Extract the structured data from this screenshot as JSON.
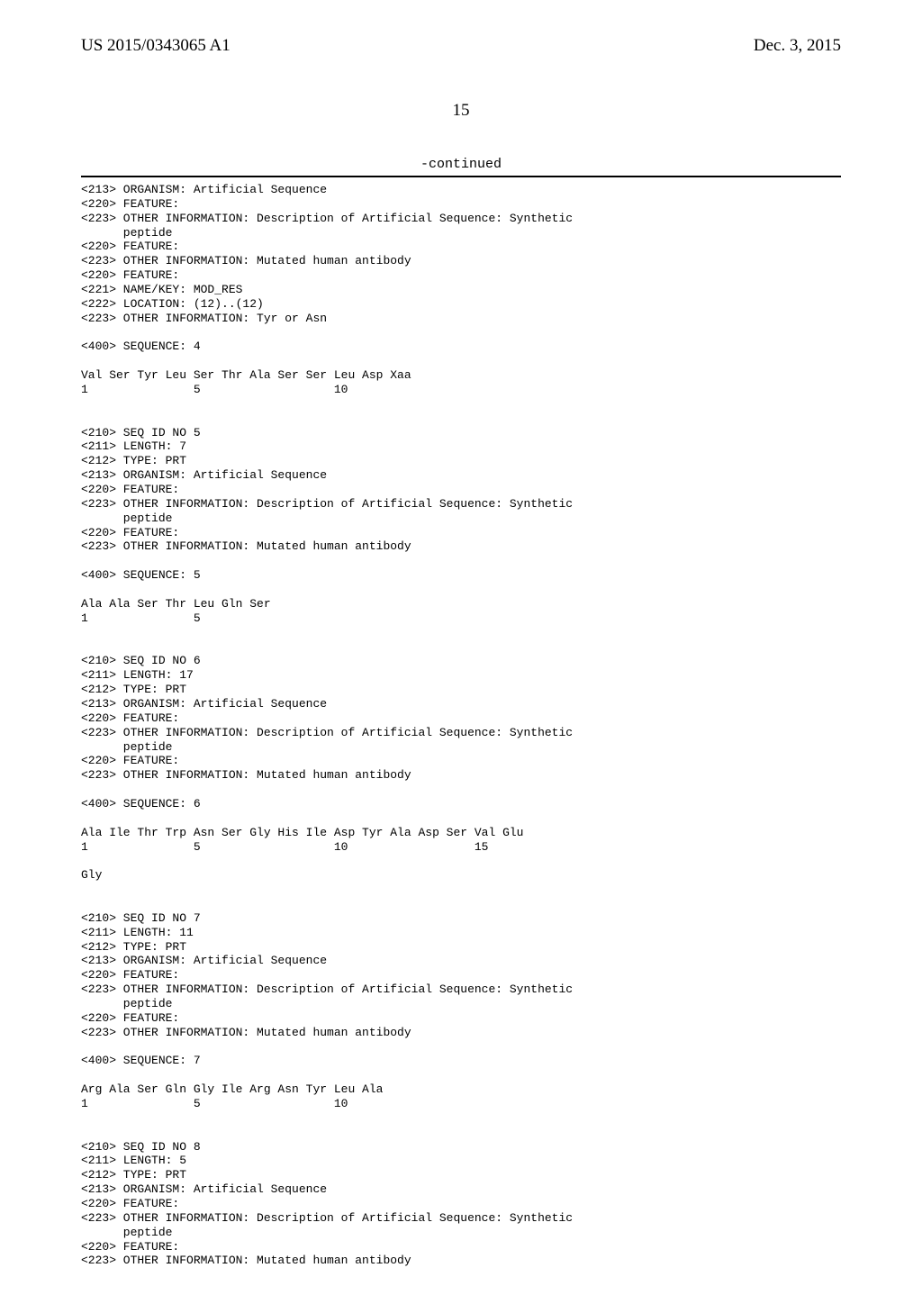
{
  "header": {
    "pub_id": "US 2015/0343065 A1",
    "pub_date": "Dec. 3, 2015"
  },
  "page_number": "15",
  "continued_label": "-continued",
  "sequence_text": "<213> ORGANISM: Artificial Sequence\n<220> FEATURE:\n<223> OTHER INFORMATION: Description of Artificial Sequence: Synthetic\n      peptide\n<220> FEATURE:\n<223> OTHER INFORMATION: Mutated human antibody\n<220> FEATURE:\n<221> NAME/KEY: MOD_RES\n<222> LOCATION: (12)..(12)\n<223> OTHER INFORMATION: Tyr or Asn\n\n<400> SEQUENCE: 4\n\nVal Ser Tyr Leu Ser Thr Ala Ser Ser Leu Asp Xaa\n1               5                   10\n\n\n<210> SEQ ID NO 5\n<211> LENGTH: 7\n<212> TYPE: PRT\n<213> ORGANISM: Artificial Sequence\n<220> FEATURE:\n<223> OTHER INFORMATION: Description of Artificial Sequence: Synthetic\n      peptide\n<220> FEATURE:\n<223> OTHER INFORMATION: Mutated human antibody\n\n<400> SEQUENCE: 5\n\nAla Ala Ser Thr Leu Gln Ser\n1               5\n\n\n<210> SEQ ID NO 6\n<211> LENGTH: 17\n<212> TYPE: PRT\n<213> ORGANISM: Artificial Sequence\n<220> FEATURE:\n<223> OTHER INFORMATION: Description of Artificial Sequence: Synthetic\n      peptide\n<220> FEATURE:\n<223> OTHER INFORMATION: Mutated human antibody\n\n<400> SEQUENCE: 6\n\nAla Ile Thr Trp Asn Ser Gly His Ile Asp Tyr Ala Asp Ser Val Glu\n1               5                   10                  15\n\nGly\n\n\n<210> SEQ ID NO 7\n<211> LENGTH: 11\n<212> TYPE: PRT\n<213> ORGANISM: Artificial Sequence\n<220> FEATURE:\n<223> OTHER INFORMATION: Description of Artificial Sequence: Synthetic\n      peptide\n<220> FEATURE:\n<223> OTHER INFORMATION: Mutated human antibody\n\n<400> SEQUENCE: 7\n\nArg Ala Ser Gln Gly Ile Arg Asn Tyr Leu Ala\n1               5                   10\n\n\n<210> SEQ ID NO 8\n<211> LENGTH: 5\n<212> TYPE: PRT\n<213> ORGANISM: Artificial Sequence\n<220> FEATURE:\n<223> OTHER INFORMATION: Description of Artificial Sequence: Synthetic\n      peptide\n<220> FEATURE:\n<223> OTHER INFORMATION: Mutated human antibody"
}
